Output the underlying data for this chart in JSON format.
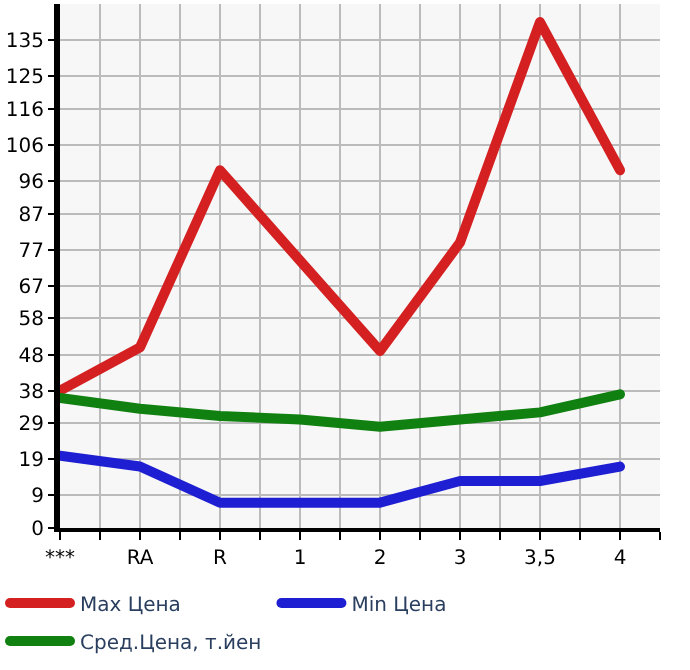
{
  "chart_data": {
    "type": "line",
    "categories": [
      "***",
      "RA",
      "R",
      "1",
      "2",
      "3",
      "3,5",
      "4"
    ],
    "series": [
      {
        "name": "Max Цена",
        "color": "#d42020",
        "values": [
          38,
          50,
          99,
          74,
          49,
          79,
          140,
          99
        ]
      },
      {
        "name": "Min Цена",
        "color": "#1e1ed2",
        "values": [
          20,
          17,
          7,
          7,
          7,
          13,
          13,
          17
        ]
      },
      {
        "name": "Сред.Цена, т.йен",
        "color": "#108010",
        "values": [
          36,
          33,
          31,
          30,
          28,
          30,
          32,
          37
        ]
      }
    ],
    "ylim": [
      0,
      145
    ],
    "yticks": [
      0,
      9,
      19,
      29,
      38,
      48,
      58,
      67,
      77,
      87,
      96,
      106,
      116,
      125,
      135
    ],
    "grid": true,
    "legend": "bottom",
    "marker": "none",
    "line_style": "solid"
  }
}
